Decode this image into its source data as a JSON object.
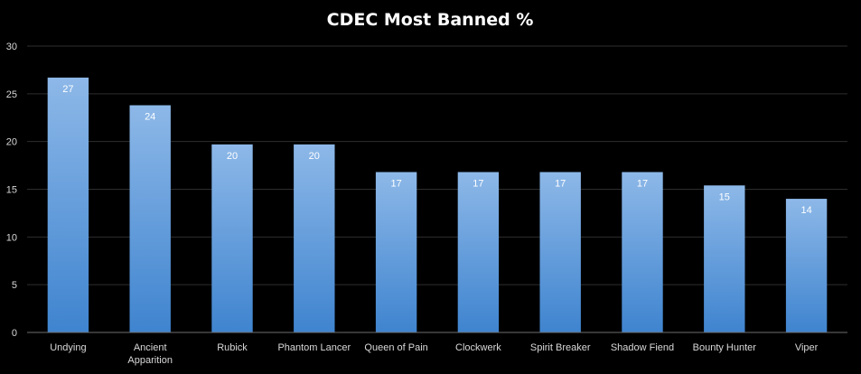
{
  "chart_data": {
    "type": "bar",
    "title": "CDEC Most Banned %",
    "xlabel": "",
    "ylabel": "",
    "categories": [
      "Undying",
      "Ancient Apparition",
      "Rubick",
      "Phantom Lancer",
      "Queen of Pain",
      "Clockwerk",
      "Spirit Breaker",
      "Shadow Fiend",
      "Bounty Hunter",
      "Viper"
    ],
    "category_lines": [
      [
        "Undying"
      ],
      [
        "Ancient",
        "Apparition"
      ],
      [
        "Rubick"
      ],
      [
        "Phantom Lancer"
      ],
      [
        "Queen of Pain"
      ],
      [
        "Clockwerk"
      ],
      [
        "Spirit Breaker"
      ],
      [
        "Shadow Fiend"
      ],
      [
        "Bounty Hunter"
      ],
      [
        "Viper"
      ]
    ],
    "values": [
      26.7,
      23.8,
      19.7,
      19.7,
      16.8,
      16.8,
      16.8,
      16.8,
      15.4,
      14.0
    ],
    "data_labels": [
      "27",
      "24",
      "20",
      "20",
      "17",
      "17",
      "17",
      "17",
      "15",
      "14"
    ],
    "ylim": [
      0,
      30
    ],
    "yticks": [
      "0",
      "5",
      "10",
      "15",
      "20",
      "25",
      "30"
    ],
    "grid": true,
    "legend": "none",
    "colors": {
      "bar_top": "#8db8e8",
      "bar_bottom": "#3f84cf",
      "background": "#000000"
    }
  }
}
